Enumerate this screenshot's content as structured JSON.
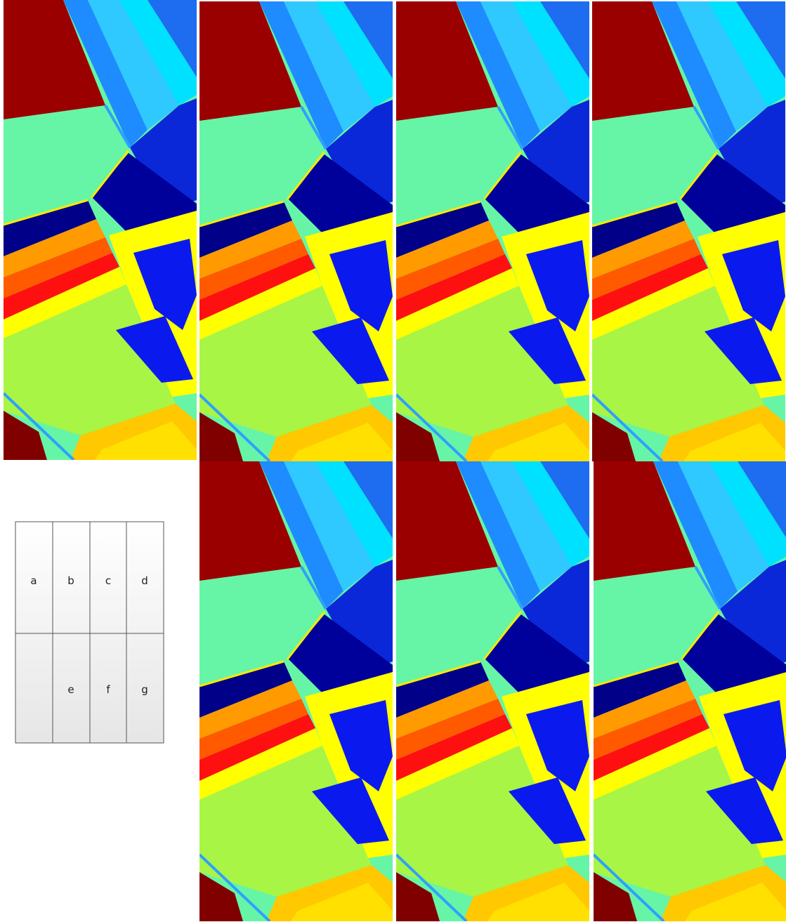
{
  "key": {
    "labels": [
      "a",
      "b",
      "c",
      "d",
      "e",
      "f",
      "g"
    ]
  }
}
